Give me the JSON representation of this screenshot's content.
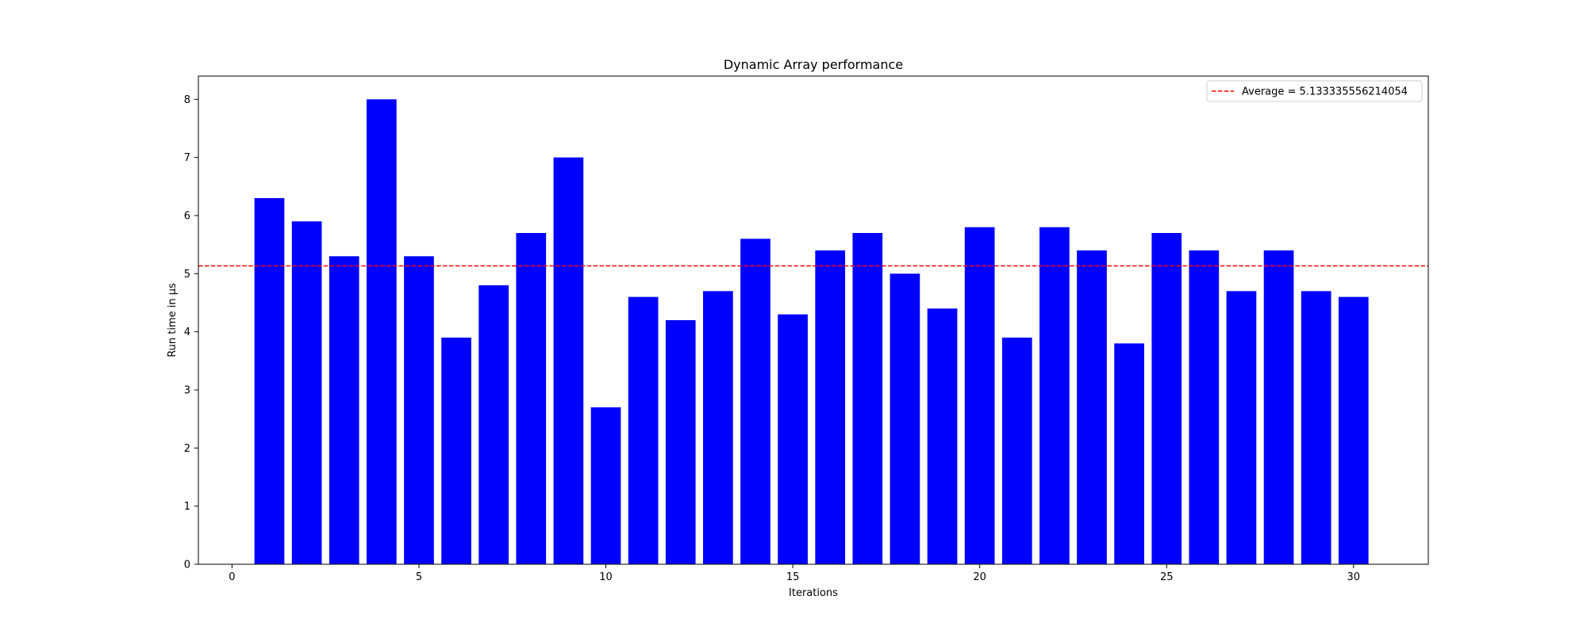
{
  "chart_data": {
    "type": "bar",
    "title": "Dynamic Array performance",
    "xlabel": "Iterations",
    "ylabel": "Run time in µs",
    "x": [
      1,
      2,
      3,
      4,
      5,
      6,
      7,
      8,
      9,
      10,
      11,
      12,
      13,
      14,
      15,
      16,
      17,
      18,
      19,
      20,
      21,
      22,
      23,
      24,
      25,
      26,
      27,
      28,
      29,
      30
    ],
    "values": [
      6.3,
      5.9,
      5.3,
      8.0,
      5.3,
      3.9,
      4.8,
      5.7,
      7.0,
      2.7,
      4.6,
      4.2,
      4.7,
      5.6,
      4.3,
      5.4,
      5.7,
      5.0,
      4.4,
      5.8,
      3.9,
      5.8,
      5.4,
      3.8,
      5.7,
      5.4,
      4.7,
      5.4,
      4.7,
      4.6
    ],
    "xlim": [
      -0.9,
      32.0
    ],
    "ylim": [
      0,
      8.4
    ],
    "xticks": [
      0,
      5,
      10,
      15,
      20,
      25,
      30
    ],
    "yticks": [
      0,
      1,
      2,
      3,
      4,
      5,
      6,
      7,
      8
    ],
    "bar_width": 0.8,
    "bar_color": "#0000ff",
    "average": {
      "value": 5.133335556214054,
      "label": "Average = 5.133335556214054",
      "color": "#ff0000",
      "style": "dashed"
    },
    "legend": {
      "placement": "top-right",
      "entries": [
        "Average = 5.133335556214054"
      ]
    },
    "grid": false
  }
}
